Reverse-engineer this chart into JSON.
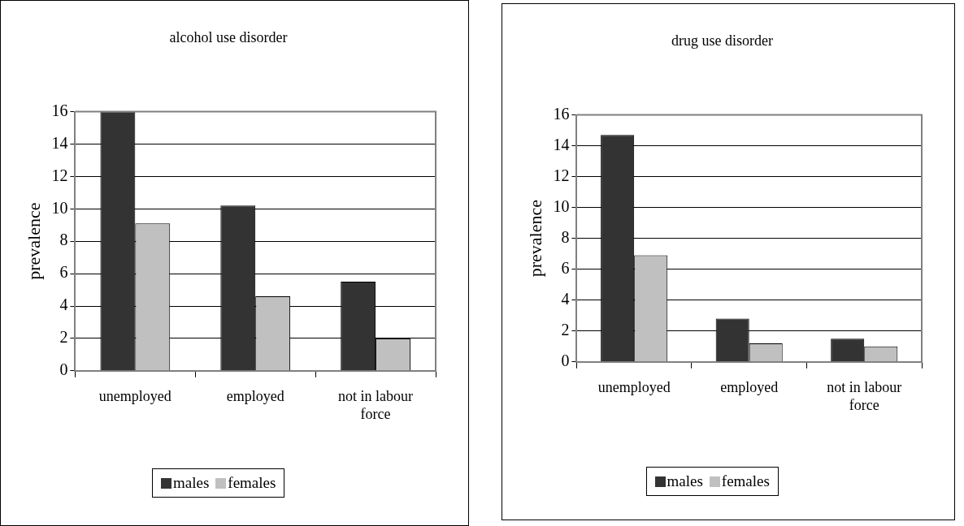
{
  "chart_data": [
    {
      "type": "bar",
      "title": "alcohol use disorder",
      "ylabel": "prevalence",
      "categories": [
        "unemployed",
        "employed",
        "not in labour force"
      ],
      "series": [
        {
          "name": "males",
          "color": "#333333",
          "values": [
            16,
            10.2,
            5.5
          ]
        },
        {
          "name": "females",
          "color": "#c0c0c0",
          "values": [
            9.1,
            4.6,
            2.0
          ]
        }
      ],
      "ylim": [
        0,
        16
      ],
      "yticks": [
        0,
        2,
        4,
        6,
        8,
        10,
        12,
        14,
        16
      ],
      "grid": "y",
      "legend": "bottom"
    },
    {
      "type": "bar",
      "title": "drug use disorder",
      "ylabel": "prevalence",
      "categories": [
        "unemployed",
        "employed",
        "not in labour force"
      ],
      "series": [
        {
          "name": "males",
          "color": "#333333",
          "values": [
            14.7,
            2.8,
            1.5
          ]
        },
        {
          "name": "females",
          "color": "#c0c0c0",
          "values": [
            6.9,
            1.2,
            1.0
          ]
        }
      ],
      "ylim": [
        0,
        16
      ],
      "yticks": [
        0,
        2,
        4,
        6,
        8,
        10,
        12,
        14,
        16
      ],
      "grid": "y",
      "legend": "bottom"
    }
  ]
}
